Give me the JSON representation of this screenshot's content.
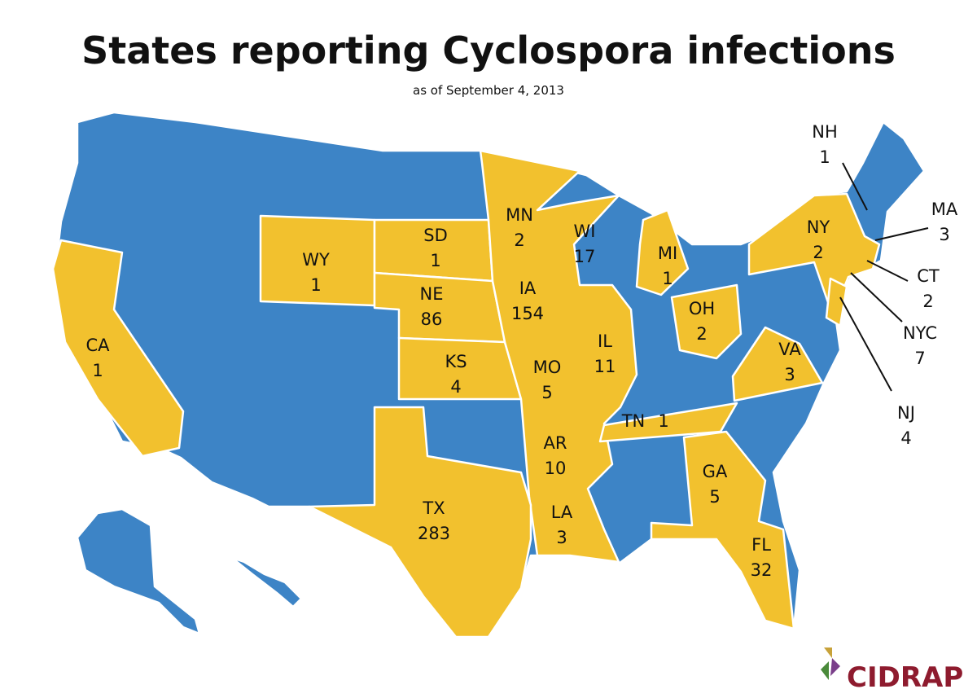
{
  "title": "States reporting Cyclospora infections",
  "subtitle": "as of September 4, 2013",
  "states": [
    {
      "abbr": "WY",
      "count": 1
    },
    {
      "abbr": "SD",
      "count": 1
    },
    {
      "abbr": "NE",
      "count": 86
    },
    {
      "abbr": "KS",
      "count": 4
    },
    {
      "abbr": "MN",
      "count": 2
    },
    {
      "abbr": "WI",
      "count": 17
    },
    {
      "abbr": "IA",
      "count": 154
    },
    {
      "abbr": "IL",
      "count": 11
    },
    {
      "abbr": "MI",
      "count": 1
    },
    {
      "abbr": "OH",
      "count": 2
    },
    {
      "abbr": "MO",
      "count": 5
    },
    {
      "abbr": "AR",
      "count": 10
    },
    {
      "abbr": "CA",
      "count": 1
    },
    {
      "abbr": "TX",
      "count": 283
    },
    {
      "abbr": "LA",
      "count": 3
    },
    {
      "abbr": "GA",
      "count": 5
    },
    {
      "abbr": "FL",
      "count": 32
    },
    {
      "abbr": "VA",
      "count": 3
    },
    {
      "abbr": "NY",
      "count": 2
    },
    {
      "abbr": "TN",
      "count": 1
    },
    {
      "abbr": "NH",
      "count": 1
    },
    {
      "abbr": "MA",
      "count": 3
    },
    {
      "abbr": "CT",
      "count": 2
    },
    {
      "abbr": "NYC",
      "count": 7
    },
    {
      "abbr": "NJ",
      "count": 4
    }
  ],
  "logo": "CIDRAP"
}
